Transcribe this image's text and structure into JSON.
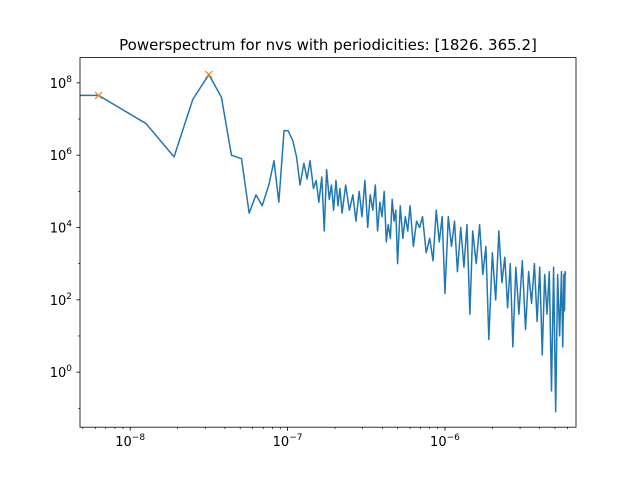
{
  "chart_data": {
    "type": "line",
    "title": "Powerspectrum for nvs with periodicities: [1826.   365.2]",
    "xlabel": "",
    "ylabel": "",
    "xscale": "log",
    "yscale": "log",
    "xlim": [
      4.8e-09,
      6.8e-06
    ],
    "ylim": [
      0.03,
      500000000.0
    ],
    "grid": false,
    "x_tick_labels": [
      {
        "base": "10",
        "exp": "−8",
        "value": 1e-08
      },
      {
        "base": "10",
        "exp": "−7",
        "value": 1e-07
      },
      {
        "base": "10",
        "exp": "−6",
        "value": 1e-06
      }
    ],
    "y_tick_labels": [
      {
        "base": "10",
        "exp": "0",
        "value": 1
      },
      {
        "base": "10",
        "exp": "2",
        "value": 100
      },
      {
        "base": "10",
        "exp": "4",
        "value": 10000
      },
      {
        "base": "10",
        "exp": "6",
        "value": 1000000
      },
      {
        "base": "10",
        "exp": "8",
        "value": 100000000
      }
    ],
    "series": [
      {
        "color": "#1f77b4",
        "style": "line",
        "points": [
          [
            4.8e-09,
            45000000.0
          ],
          [
            6.3e-09,
            45000000.0
          ],
          [
            1.26e-08,
            7500000.0
          ],
          [
            1.9e-08,
            900000.0
          ],
          [
            2.5e-08,
            35000000.0
          ],
          [
            3.16e-08,
            170000000.0
          ],
          [
            3.8e-08,
            40000000.0
          ],
          [
            4.4e-08,
            1000000.0
          ],
          [
            5.1e-08,
            800000.0
          ],
          [
            5.7e-08,
            25000.0
          ],
          [
            6.3e-08,
            80000.0
          ],
          [
            6.9e-08,
            40000.0
          ],
          [
            7.6e-08,
            150000.0
          ],
          [
            8.2e-08,
            700000.0
          ],
          [
            8.8e-08,
            50000.0
          ],
          [
            9.5e-08,
            4800000.0
          ],
          [
            1.01e-07,
            4700000.0
          ],
          [
            1.08e-07,
            2500000.0
          ],
          [
            1.14e-07,
            900000.0
          ],
          [
            1.2e-07,
            150000.0
          ],
          [
            1.27e-07,
            600000.0
          ],
          [
            1.33e-07,
            220000.0
          ],
          [
            1.39e-07,
            700000.0
          ],
          [
            1.46e-07,
            120000.0
          ],
          [
            1.52e-07,
            200000.0
          ],
          [
            1.58e-07,
            50000.0
          ],
          [
            1.65e-07,
            250000.0
          ],
          [
            1.71e-07,
            8000.0
          ],
          [
            1.77e-07,
            400000.0
          ],
          [
            1.84e-07,
            60000.0
          ],
          [
            1.9e-07,
            150000.0
          ],
          [
            1.96e-07,
            30000.0
          ],
          [
            2.03e-07,
            200000.0
          ],
          [
            2.09e-07,
            40000.0
          ],
          [
            2.15e-07,
            120000.0
          ],
          [
            2.22e-07,
            25000.0
          ],
          [
            2.34e-07,
            150000.0
          ],
          [
            2.47e-07,
            30000.0
          ],
          [
            2.6e-07,
            80000.0
          ],
          [
            2.72e-07,
            15000.0
          ],
          [
            2.85e-07,
            100000.0
          ],
          [
            2.97e-07,
            20000.0
          ],
          [
            3.1e-07,
            200000.0
          ],
          [
            3.23e-07,
            10000.0
          ],
          [
            3.35e-07,
            80000.0
          ],
          [
            3.48e-07,
            30000.0
          ],
          [
            3.61e-07,
            150000.0
          ],
          [
            3.73e-07,
            8000.0
          ],
          [
            3.86e-07,
            50000.0
          ],
          [
            3.98e-07,
            20000.0
          ],
          [
            4.11e-07,
            100000.0
          ],
          [
            4.24e-07,
            4000.0
          ],
          [
            4.36e-07,
            12000.0
          ],
          [
            4.5e-07,
            5000.0
          ],
          [
            4.62e-07,
            60000.0
          ],
          [
            4.75e-07,
            15000.0
          ],
          [
            4.87e-07,
            30000.0
          ],
          [
            5e-07,
            1000.0
          ],
          [
            5.2e-07,
            40000.0
          ],
          [
            5.4e-07,
            5000.0
          ],
          [
            5.6e-07,
            20000.0
          ],
          [
            5.8e-07,
            8000.0
          ],
          [
            6e-07,
            40000.0
          ],
          [
            6.3e-07,
            3000.0
          ],
          [
            6.6e-07,
            15000.0
          ],
          [
            6.9e-07,
            10000.0
          ],
          [
            7.2e-07,
            20000.0
          ],
          [
            7.6e-07,
            2000.0
          ],
          [
            8e-07,
            5000.0
          ],
          [
            8.4e-07,
            1200.0
          ],
          [
            8.8e-07,
            30000.0
          ],
          [
            9.2e-07,
            4000.0
          ],
          [
            9.6e-07,
            20000.0
          ],
          [
            1e-06,
            150.0
          ],
          [
            1.05e-06,
            20000.0
          ],
          [
            1.1e-06,
            3000.0
          ],
          [
            1.15e-06,
            15000.0
          ],
          [
            1.2e-06,
            600.0
          ],
          [
            1.26e-06,
            10000.0
          ],
          [
            1.32e-06,
            800.0
          ],
          [
            1.38e-06,
            12000.0
          ],
          [
            1.44e-06,
            40
          ],
          [
            1.5e-06,
            8000.0
          ],
          [
            1.58e-06,
            1000.0
          ],
          [
            1.66e-06,
            12000.0
          ],
          [
            1.74e-06,
            500.0
          ],
          [
            1.82e-06,
            3000.0
          ],
          [
            1.9e-06,
            8
          ],
          [
            2e-06,
            2000.0
          ],
          [
            2.1e-06,
            100.0
          ],
          [
            2.2e-06,
            8000.0
          ],
          [
            2.3e-06,
            300.0
          ],
          [
            2.4e-06,
            1500.0
          ],
          [
            2.5e-06,
            60
          ],
          [
            2.6e-06,
            1000.0
          ],
          [
            2.7e-06,
            5
          ],
          [
            2.82e-06,
            800.0
          ],
          [
            2.95e-06,
            40
          ],
          [
            3.1e-06,
            1200.0
          ],
          [
            3.25e-06,
            15
          ],
          [
            3.4e-06,
            600.0
          ],
          [
            3.55e-06,
            80
          ],
          [
            3.7e-06,
            1000.0
          ],
          [
            3.85e-06,
            25
          ],
          [
            4e-06,
            800.0
          ],
          [
            4.15e-06,
            3
          ],
          [
            4.3e-06,
            500.0
          ],
          [
            4.45e-06,
            40
          ],
          [
            4.6e-06,
            600.0
          ],
          [
            4.75e-06,
            0.3
          ],
          [
            4.9e-06,
            800.0
          ],
          [
            5.05e-06,
            0.08
          ],
          [
            5.2e-06,
            500.0
          ],
          [
            5.35e-06,
            10
          ],
          [
            5.5e-06,
            600.0
          ],
          [
            5.6e-06,
            5
          ],
          [
            5.7e-06,
            500.0
          ],
          [
            5.75e-06,
            50
          ],
          [
            5.8e-06,
            600.0
          ],
          [
            5.85e-06,
            500.0
          ]
        ]
      },
      {
        "color": "#ff7f0e",
        "style": "x-markers",
        "points": [
          [
            6.3e-09,
            45000000.0
          ],
          [
            3.16e-08,
            170000000.0
          ]
        ]
      }
    ]
  }
}
